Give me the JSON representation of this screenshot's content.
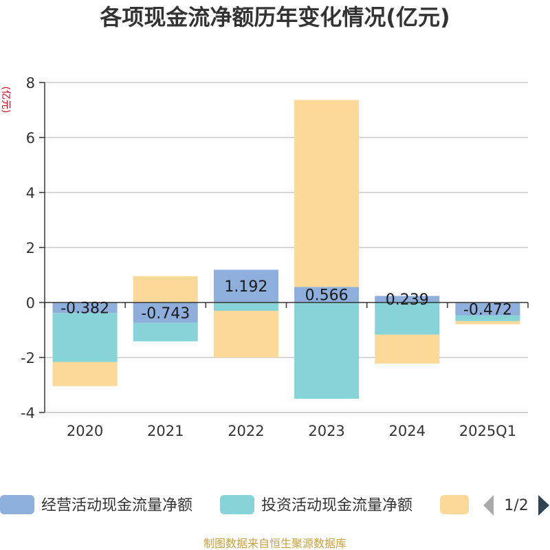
{
  "chart_data": {
    "type": "bar",
    "stacked": true,
    "title": "各项现金流净额历年变化情况(亿元)",
    "ylabel": "(亿元)",
    "categories": [
      "2020",
      "2021",
      "2022",
      "2023",
      "2024",
      "2025Q1"
    ],
    "ylim": [
      -4,
      8
    ],
    "yticks": [
      -4,
      -2,
      0,
      2,
      4,
      6,
      8
    ],
    "grid": true,
    "legend_position": "bottom",
    "series": [
      {
        "name": "经营活动现金流量净额",
        "color": "#8eaedb",
        "values": [
          -0.382,
          -0.743,
          1.192,
          0.566,
          0.239,
          -0.472
        ],
        "labels": [
          "-0.382",
          "-0.743",
          "1.192",
          "0.566",
          "0.239",
          "-0.472"
        ]
      },
      {
        "name": "投资活动现金流量净额",
        "color": "#86d4d7",
        "values": [
          -1.78,
          -0.67,
          -0.3,
          -3.5,
          -1.17,
          -0.2
        ]
      },
      {
        "name": "",
        "color": "#fdd999",
        "values": [
          -0.88,
          0.95,
          -1.7,
          6.8,
          -1.05,
          -0.12
        ]
      }
    ]
  },
  "legend": {
    "page_indicator": "1/2",
    "prev_icon": "triangle-left-icon",
    "next_icon": "triangle-right-icon"
  },
  "source_text": "制图数据来自恒生聚源数据库"
}
